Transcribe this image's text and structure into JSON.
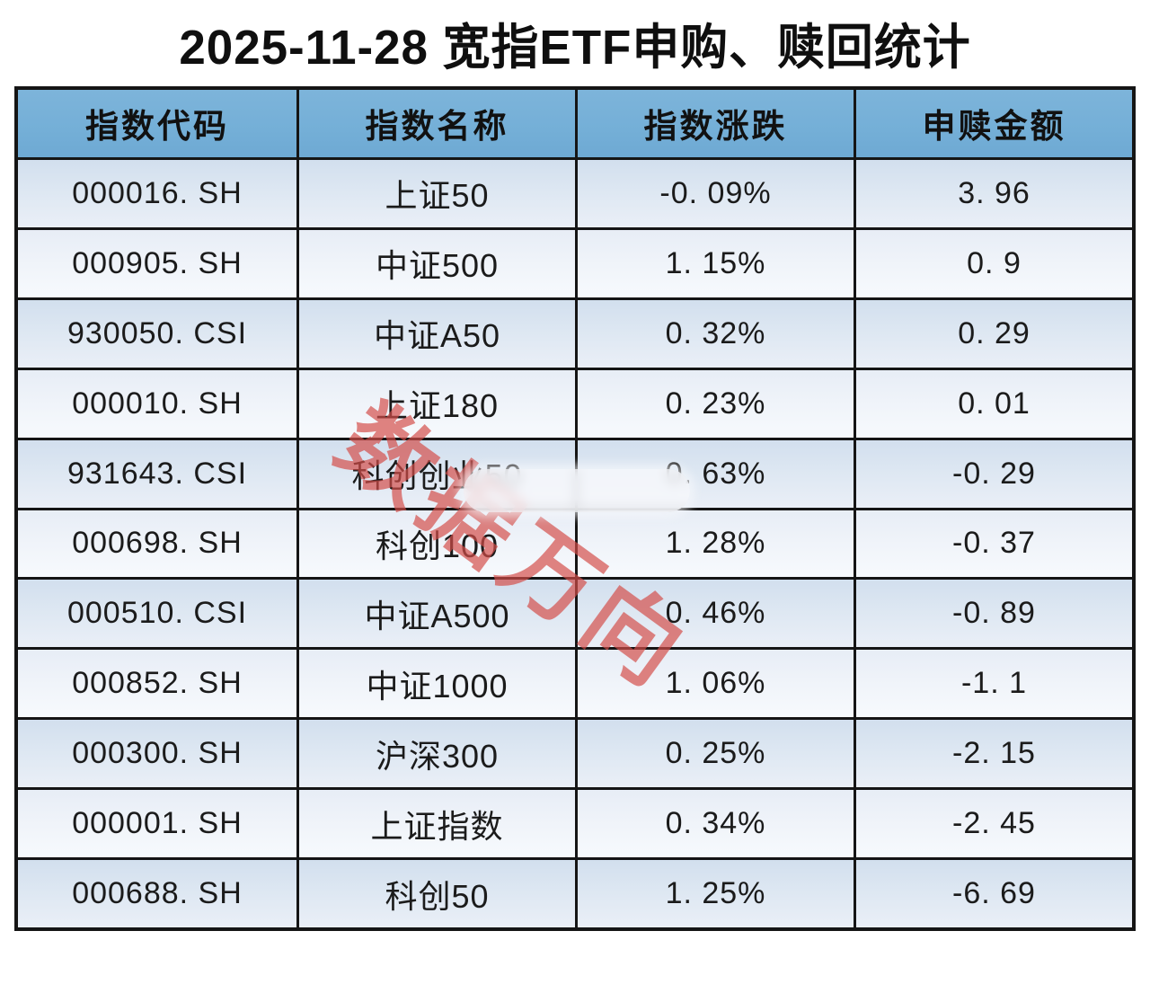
{
  "title": "2025-11-28 宽指ETF申购、赎回统计",
  "watermark": {
    "text": "数据万向",
    "color": "#d34d48"
  },
  "colors": {
    "header_bg": "#74afd7",
    "border": "#151515",
    "row_odd_top": "#d2dfee",
    "row_even_top": "#e7edf6",
    "watermark_red": "#d34d48"
  },
  "table": {
    "columns": [
      "指数代码",
      "指数名称",
      "指数涨跌",
      "申赎金额"
    ],
    "rows": [
      {
        "code": "000016. SH",
        "name": "上证50",
        "change": "-0. 09%",
        "amount": "3. 96"
      },
      {
        "code": "000905. SH",
        "name": "中证500",
        "change": "1. 15%",
        "amount": "0. 9"
      },
      {
        "code": "930050. CSI",
        "name": "中证A50",
        "change": "0. 32%",
        "amount": "0. 29"
      },
      {
        "code": "000010. SH",
        "name": "上证180",
        "change": "0. 23%",
        "amount": "0. 01"
      },
      {
        "code": "931643. CSI",
        "name": "科创创业50",
        "change": "0. 63%",
        "amount": "-0. 29"
      },
      {
        "code": "000698. SH",
        "name": "科创100",
        "change": "1. 28%",
        "amount": "-0. 37"
      },
      {
        "code": "000510. CSI",
        "name": "中证A500",
        "change": "0. 46%",
        "amount": "-0. 89"
      },
      {
        "code": "000852. SH",
        "name": "中证1000",
        "change": "1. 06%",
        "amount": "-1. 1"
      },
      {
        "code": "000300. SH",
        "name": "沪深300",
        "change": "0. 25%",
        "amount": "-2. 15"
      },
      {
        "code": "000001. SH",
        "name": "上证指数",
        "change": "0. 34%",
        "amount": "-2. 45"
      },
      {
        "code": "000688. SH",
        "name": "科创50",
        "change": "1. 25%",
        "amount": "-6. 69"
      }
    ]
  },
  "chart_data": {
    "type": "table",
    "title": "2025-11-28 宽指ETF申购、赎回统计",
    "columns": [
      "指数代码",
      "指数名称",
      "指数涨跌",
      "申赎金额"
    ],
    "index_codes": [
      "000016.SH",
      "000905.SH",
      "930050.CSI",
      "000010.SH",
      "931643.CSI",
      "000698.SH",
      "000510.CSI",
      "000852.SH",
      "000300.SH",
      "000001.SH",
      "000688.SH"
    ],
    "index_names": [
      "上证50",
      "中证500",
      "中证A50",
      "上证180",
      "科创创业50",
      "科创100",
      "中证A500",
      "中证1000",
      "沪深300",
      "上证指数",
      "科创50"
    ],
    "change_pct": [
      -0.09,
      1.15,
      0.32,
      0.23,
      0.63,
      1.28,
      0.46,
      1.06,
      0.25,
      0.34,
      1.25
    ],
    "net_amount": [
      3.96,
      0.9,
      0.29,
      0.01,
      -0.29,
      -0.37,
      -0.89,
      -1.1,
      -2.15,
      -2.45,
      -6.69
    ]
  }
}
